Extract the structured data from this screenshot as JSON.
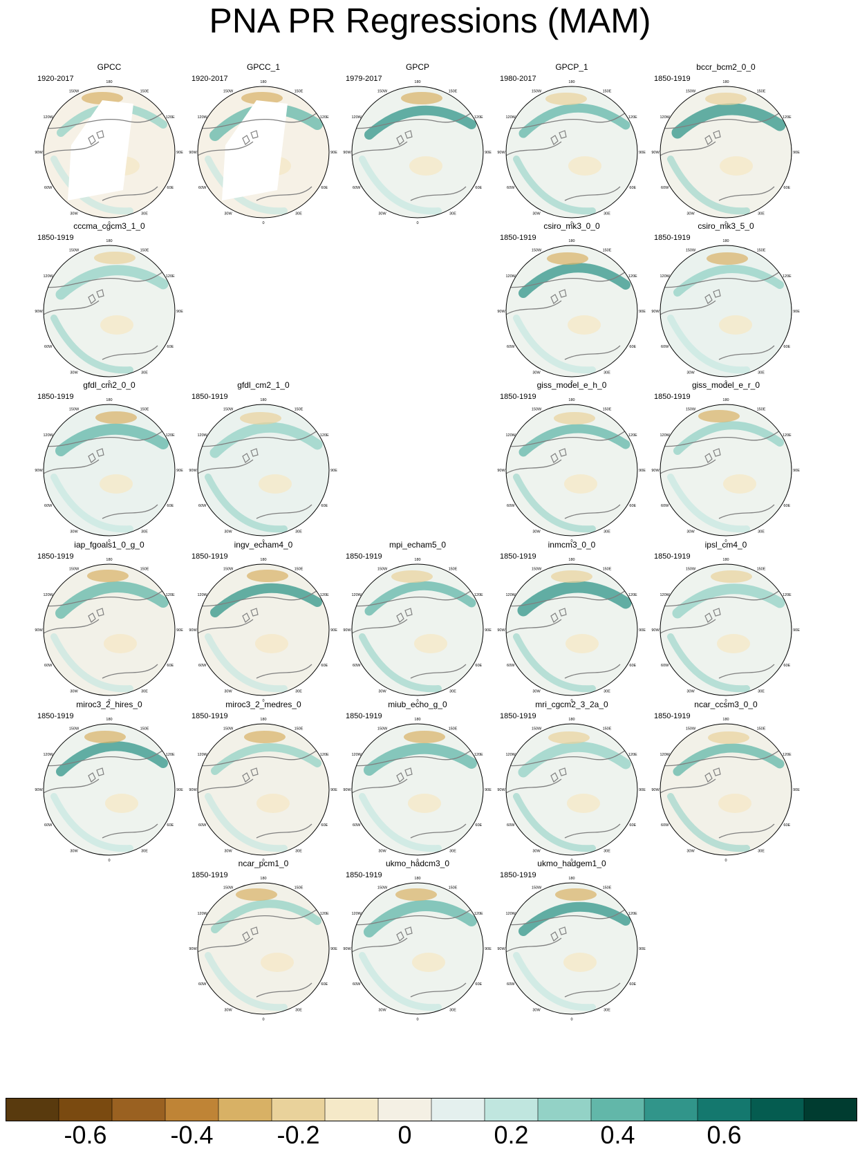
{
  "title": "PNA PR Regressions (MAM)",
  "meridian_labels": [
    "180",
    "150E",
    "120E",
    "90E",
    "60E",
    "30E",
    "0",
    "30W",
    "60W",
    "90W",
    "120W",
    "150W"
  ],
  "panels": [
    {
      "name": "GPCC",
      "years": "1920-2017",
      "row": 0,
      "col": 0,
      "fill": "#f6f1e6",
      "obs_mask": true
    },
    {
      "name": "GPCC_1",
      "years": "1920-2017",
      "row": 0,
      "col": 1,
      "fill": "#f6f1e6",
      "obs_mask": true
    },
    {
      "name": "GPCP",
      "years": "1979-2017",
      "row": 0,
      "col": 2,
      "fill": "#eef3ee",
      "obs_mask": false
    },
    {
      "name": "GPCP_1",
      "years": "1980-2017",
      "row": 0,
      "col": 3,
      "fill": "#eef3ee",
      "obs_mask": false
    },
    {
      "name": "bccr_bcm2_0_0",
      "years": "1850-1919",
      "row": 0,
      "col": 4,
      "fill": "#f2f2ea",
      "obs_mask": false
    },
    {
      "name": "cccma_cgcm3_1_0",
      "years": "1850-1919",
      "row": 1,
      "col": 0,
      "fill": "#eef3ee",
      "obs_mask": false
    },
    {
      "name": "csiro_mk3_0_0",
      "years": "1850-1919",
      "row": 1,
      "col": 3,
      "fill": "#eef3ee",
      "obs_mask": false
    },
    {
      "name": "csiro_mk3_5_0",
      "years": "1850-1919",
      "row": 1,
      "col": 4,
      "fill": "#eaf2ee",
      "obs_mask": false
    },
    {
      "name": "gfdl_cm2_0_0",
      "years": "1850-1919",
      "row": 2,
      "col": 0,
      "fill": "#eaf2ee",
      "obs_mask": false
    },
    {
      "name": "gfdl_cm2_1_0",
      "years": "1850-1919",
      "row": 2,
      "col": 1,
      "fill": "#eaf2ee",
      "obs_mask": false
    },
    {
      "name": "giss_model_e_h_0",
      "years": "1850-1919",
      "row": 2,
      "col": 3,
      "fill": "#eef3ee",
      "obs_mask": false
    },
    {
      "name": "giss_model_e_r_0",
      "years": "1850-1919",
      "row": 2,
      "col": 4,
      "fill": "#eef3ee",
      "obs_mask": false
    },
    {
      "name": "iap_fgoals1_0_g_0",
      "years": "1850-1919",
      "row": 3,
      "col": 0,
      "fill": "#f2f1e8",
      "obs_mask": false
    },
    {
      "name": "ingv_echam4_0",
      "years": "1850-1919",
      "row": 3,
      "col": 1,
      "fill": "#f2f1e8",
      "obs_mask": false
    },
    {
      "name": "mpi_echam5_0",
      "years": "1850-1919",
      "row": 3,
      "col": 2,
      "fill": "#eef3ee",
      "obs_mask": false
    },
    {
      "name": "inmcm3_0_0",
      "years": "1850-1919",
      "row": 3,
      "col": 3,
      "fill": "#eef3ee",
      "obs_mask": false
    },
    {
      "name": "ipsl_cm4_0",
      "years": "1850-1919",
      "row": 3,
      "col": 4,
      "fill": "#eef3ee",
      "obs_mask": false
    },
    {
      "name": "miroc3_2_hires_0",
      "years": "1850-1919",
      "row": 4,
      "col": 0,
      "fill": "#eef3ee",
      "obs_mask": false
    },
    {
      "name": "miroc3_2_medres_0",
      "years": "1850-1919",
      "row": 4,
      "col": 1,
      "fill": "#f2f1e8",
      "obs_mask": false
    },
    {
      "name": "miub_echo_g_0",
      "years": "1850-1919",
      "row": 4,
      "col": 2,
      "fill": "#eef3ee",
      "obs_mask": false
    },
    {
      "name": "mri_cgcm2_3_2a_0",
      "years": "1850-1919",
      "row": 4,
      "col": 3,
      "fill": "#eef3ee",
      "obs_mask": false
    },
    {
      "name": "ncar_ccsm3_0_0",
      "years": "1850-1919",
      "row": 4,
      "col": 4,
      "fill": "#f2f1e8",
      "obs_mask": false
    },
    {
      "name": "ncar_pcm1_0",
      "years": "1850-1919",
      "row": 5,
      "col": 1,
      "fill": "#f2f1e8",
      "obs_mask": false
    },
    {
      "name": "ukmo_hadcm3_0",
      "years": "1850-1919",
      "row": 5,
      "col": 2,
      "fill": "#eef3ee",
      "obs_mask": false
    },
    {
      "name": "ukmo_hadgem1_0",
      "years": "1850-1919",
      "row": 5,
      "col": 3,
      "fill": "#eef3ee",
      "obs_mask": false
    }
  ],
  "colorbar": {
    "colors": [
      "#593a0e",
      "#7a4a10",
      "#9a6121",
      "#bf8436",
      "#d8b165",
      "#e9d29b",
      "#f5e9c8",
      "#f4f0e4",
      "#e4f0ee",
      "#c0e6df",
      "#93d2c6",
      "#62b7a9",
      "#31958a",
      "#14786e",
      "#055c50",
      "#003c30"
    ],
    "tick_labels": [
      "-0.6",
      "-0.4",
      "-0.2",
      "0",
      "0.2",
      "0.4",
      "0.6"
    ],
    "tick_boundaries": [
      1,
      3,
      5,
      7,
      9,
      11,
      13
    ]
  }
}
